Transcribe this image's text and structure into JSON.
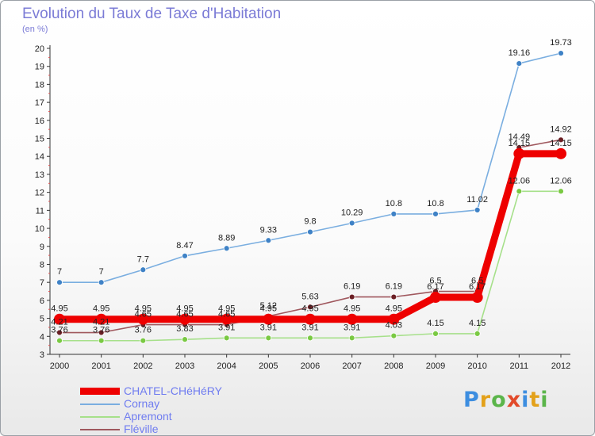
{
  "title": "Evolution du Taux de Taxe d'Habitation",
  "unit_label": "(en %)",
  "logo": {
    "letters": [
      {
        "ch": "P",
        "color": "#3d8ee0"
      },
      {
        "ch": "r",
        "color": "#e3a11a"
      },
      {
        "ch": "o",
        "color": "#5bb54a"
      },
      {
        "ch": "x",
        "color": "#e24a2a"
      },
      {
        "ch": "i",
        "color": "#3d8ee0"
      },
      {
        "ch": "t",
        "color": "#e3a11a"
      },
      {
        "ch": "i",
        "color": "#5bb54a"
      }
    ]
  },
  "chart_data": {
    "type": "line",
    "title": "Evolution du Taux de Taxe d'Habitation",
    "ylabel": "(en %)",
    "xlabel": "",
    "x": [
      "2000",
      "2001",
      "2002",
      "2003",
      "2004",
      "2005",
      "2006",
      "2007",
      "2008",
      "2009",
      "2010",
      "2011",
      "2012"
    ],
    "ylim": [
      3,
      20
    ],
    "yticks": [
      "3",
      "4",
      "5",
      "6",
      "7",
      "8",
      "9",
      "10",
      "11",
      "12",
      "13",
      "14",
      "15",
      "16",
      "17",
      "18",
      "19",
      "20"
    ],
    "grid": false,
    "legend_position": "bottom-left",
    "series": [
      {
        "name": "CHATEL-CHéHéRY",
        "color": "#ee0000",
        "marker": "#ee0000",
        "style": "thick",
        "values": [
          4.95,
          4.95,
          4.95,
          4.95,
          4.95,
          4.95,
          4.95,
          4.95,
          4.95,
          6.17,
          6.17,
          14.15,
          14.15
        ],
        "labels": [
          "4.95",
          "4.95",
          "4.95",
          "4.95",
          "4.95",
          "4.95",
          "4.95",
          "4.95",
          "4.95",
          "6.17",
          "6.17",
          "14.15",
          "14.15"
        ]
      },
      {
        "name": "Cornay",
        "color": "#7aaee0",
        "marker": "#3f82c6",
        "style": "thin",
        "values": [
          7,
          7,
          7.7,
          8.47,
          8.89,
          9.33,
          9.8,
          10.29,
          10.8,
          10.8,
          11.02,
          19.16,
          19.73
        ],
        "labels": [
          "7",
          "7",
          "7.7",
          "8.47",
          "8.89",
          "9.33",
          "9.8",
          "10.29",
          "10.8",
          "10.8",
          "11.02",
          "19.16",
          "19.73"
        ]
      },
      {
        "name": "Apremont",
        "color": "#a6e08a",
        "marker": "#7ac943",
        "style": "thin",
        "values": [
          3.76,
          3.76,
          3.76,
          3.83,
          3.91,
          3.91,
          3.91,
          3.91,
          4.03,
          4.15,
          4.15,
          12.06,
          12.06
        ],
        "labels": [
          "3.76",
          "3.76",
          "3.76",
          "3.83",
          "3.91",
          "3.91",
          "3.91",
          "3.91",
          "4.03",
          "4.15",
          "4.15",
          "12.06",
          "12.06"
        ]
      },
      {
        "name": "Fléville",
        "color": "#a0585e",
        "marker": "#6b1f24",
        "style": "thin",
        "values": [
          4.21,
          4.21,
          4.65,
          4.65,
          4.65,
          5.12,
          5.63,
          6.19,
          6.19,
          6.5,
          6.5,
          14.49,
          14.92
        ],
        "labels": [
          "4.21",
          "4.21",
          "4.65",
          "4.65",
          "4.65",
          "5.12",
          "5.63",
          "6.19",
          "6.19",
          "6.5",
          "6.5",
          "14.49",
          "14.92"
        ]
      }
    ]
  }
}
